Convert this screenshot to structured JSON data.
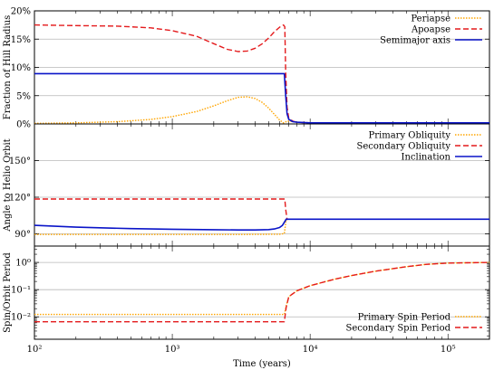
{
  "chart_data": [
    {
      "type": "line",
      "ylabel": "Fraction of Hill Radius",
      "ylim": [
        0,
        20
      ],
      "yticks": [
        {
          "v": 0,
          "label": "0%"
        },
        {
          "v": 5,
          "label": "5%"
        },
        {
          "v": 10,
          "label": "10%"
        },
        {
          "v": 15,
          "label": "15%"
        },
        {
          "v": 20,
          "label": "20%"
        }
      ],
      "series": [
        {
          "name": "Periapse",
          "color": "#ffa500",
          "dash": "dotted",
          "x": [
            100,
            200,
            400,
            700,
            1000,
            1500,
            2000,
            2500,
            3000,
            3500,
            4000,
            4500,
            5000,
            5500,
            6000,
            6400,
            6600,
            6800,
            7000,
            7500,
            8000,
            10000,
            200000
          ],
          "y": [
            0.1,
            0.2,
            0.4,
            0.8,
            1.3,
            2.2,
            3.2,
            4.1,
            4.7,
            4.8,
            4.5,
            3.8,
            2.8,
            1.7,
            0.7,
            0.2,
            0.3,
            0.5,
            0.5,
            0.4,
            0.3,
            0.2,
            0.2
          ]
        },
        {
          "name": "Apoapse",
          "color": "#e41a1c",
          "dash": "dashed",
          "x": [
            100,
            200,
            400,
            700,
            1000,
            1500,
            2000,
            2500,
            3000,
            3500,
            4000,
            4500,
            5000,
            5500,
            6000,
            6400,
            6550,
            6650,
            6800,
            7000,
            7500,
            8000,
            10000,
            200000
          ],
          "y": [
            17.5,
            17.4,
            17.3,
            17.0,
            16.5,
            15.5,
            14.2,
            13.2,
            12.8,
            12.9,
            13.4,
            14.2,
            15.2,
            16.3,
            17.1,
            17.5,
            17.2,
            9.0,
            3.0,
            1.0,
            0.5,
            0.3,
            0.2,
            0.2
          ]
        },
        {
          "name": "Semimajor axis",
          "color": "#0a14c8",
          "dash": "solid",
          "x": [
            100,
            1000,
            3000,
            6000,
            6500,
            6650,
            6800,
            7000,
            7500,
            8000,
            10000,
            200000
          ],
          "y": [
            8.9,
            8.9,
            8.9,
            8.9,
            8.9,
            5.0,
            1.8,
            0.8,
            0.4,
            0.3,
            0.2,
            0.2
          ]
        }
      ]
    },
    {
      "type": "line",
      "ylabel": "Angle to Helio Orbit",
      "ylim": [
        80,
        180
      ],
      "yticks": [
        {
          "v": 90,
          "label": "90°"
        },
        {
          "v": 120,
          "label": "120°"
        },
        {
          "v": 150,
          "label": "150°"
        }
      ],
      "series": [
        {
          "name": "Primary Obliquity",
          "color": "#ffa500",
          "dash": "dotted",
          "x": [
            100,
            1000,
            3000,
            6000,
            6500,
            6600,
            6700,
            7000,
            10000,
            200000
          ],
          "y": [
            89.5,
            89.5,
            89.5,
            89.7,
            90.3,
            96.0,
            101.5,
            102.0,
            102.0,
            102.0
          ]
        },
        {
          "name": "Secondary Obliquity",
          "color": "#e41a1c",
          "dash": "dashed",
          "x": [
            100,
            1000,
            3000,
            6000,
            6550,
            6650,
            6800,
            7000,
            10000,
            200000
          ],
          "y": [
            118.5,
            118.5,
            118.5,
            118.5,
            118.5,
            110.0,
            102.0,
            102.0,
            102.0,
            102.0
          ]
        },
        {
          "name": "Inclination",
          "color": "#0a14c8",
          "dash": "solid",
          "x": [
            100,
            200,
            500,
            1000,
            2000,
            3000,
            4000,
            5000,
            5500,
            6000,
            6300,
            6500,
            6700,
            7000,
            10000,
            200000
          ],
          "y": [
            97.0,
            95.5,
            94.3,
            93.8,
            93.4,
            93.2,
            93.2,
            93.5,
            94.0,
            95.2,
            97.0,
            99.5,
            102.0,
            102.0,
            102.0,
            102.0
          ]
        }
      ]
    },
    {
      "type": "line",
      "scale_y": "log",
      "ylabel": "Spin/Orbit Period",
      "xlabel": "Time (years)",
      "ylim": [
        0.0015,
        4
      ],
      "yticks": [
        {
          "v": 0.01,
          "label": "10⁻²"
        },
        {
          "v": 0.1,
          "label": "10⁻¹"
        },
        {
          "v": 1,
          "label": "10⁰"
        }
      ],
      "series": [
        {
          "name": "Primary Spin Period",
          "color": "#ffa500",
          "dash": "dotted",
          "x": [
            100,
            1000,
            6000,
            6500,
            6700,
            7000,
            8000,
            10000,
            15000,
            20000,
            30000,
            50000,
            70000,
            100000,
            200000
          ],
          "y": [
            0.0122,
            0.0122,
            0.0122,
            0.0122,
            0.025,
            0.055,
            0.09,
            0.14,
            0.24,
            0.33,
            0.48,
            0.7,
            0.85,
            0.95,
            1.0
          ]
        },
        {
          "name": "Secondary Spin Period",
          "color": "#e41a1c",
          "dash": "dashed",
          "x": [
            100,
            1000,
            6000,
            6500,
            6700,
            7000,
            8000,
            10000,
            15000,
            20000,
            30000,
            50000,
            70000,
            100000,
            200000
          ],
          "y": [
            0.0066,
            0.0066,
            0.0066,
            0.0066,
            0.022,
            0.055,
            0.09,
            0.14,
            0.24,
            0.33,
            0.48,
            0.7,
            0.85,
            0.95,
            1.0
          ]
        }
      ]
    }
  ],
  "x_axis": {
    "label": "Time (years)",
    "scale": "log",
    "xlim": [
      100,
      200000
    ],
    "ticks": [
      {
        "v": 100,
        "label": "10²"
      },
      {
        "v": 1000,
        "label": "10³"
      },
      {
        "v": 10000,
        "label": "10⁴"
      },
      {
        "v": 100000,
        "label": "10⁵"
      }
    ]
  }
}
